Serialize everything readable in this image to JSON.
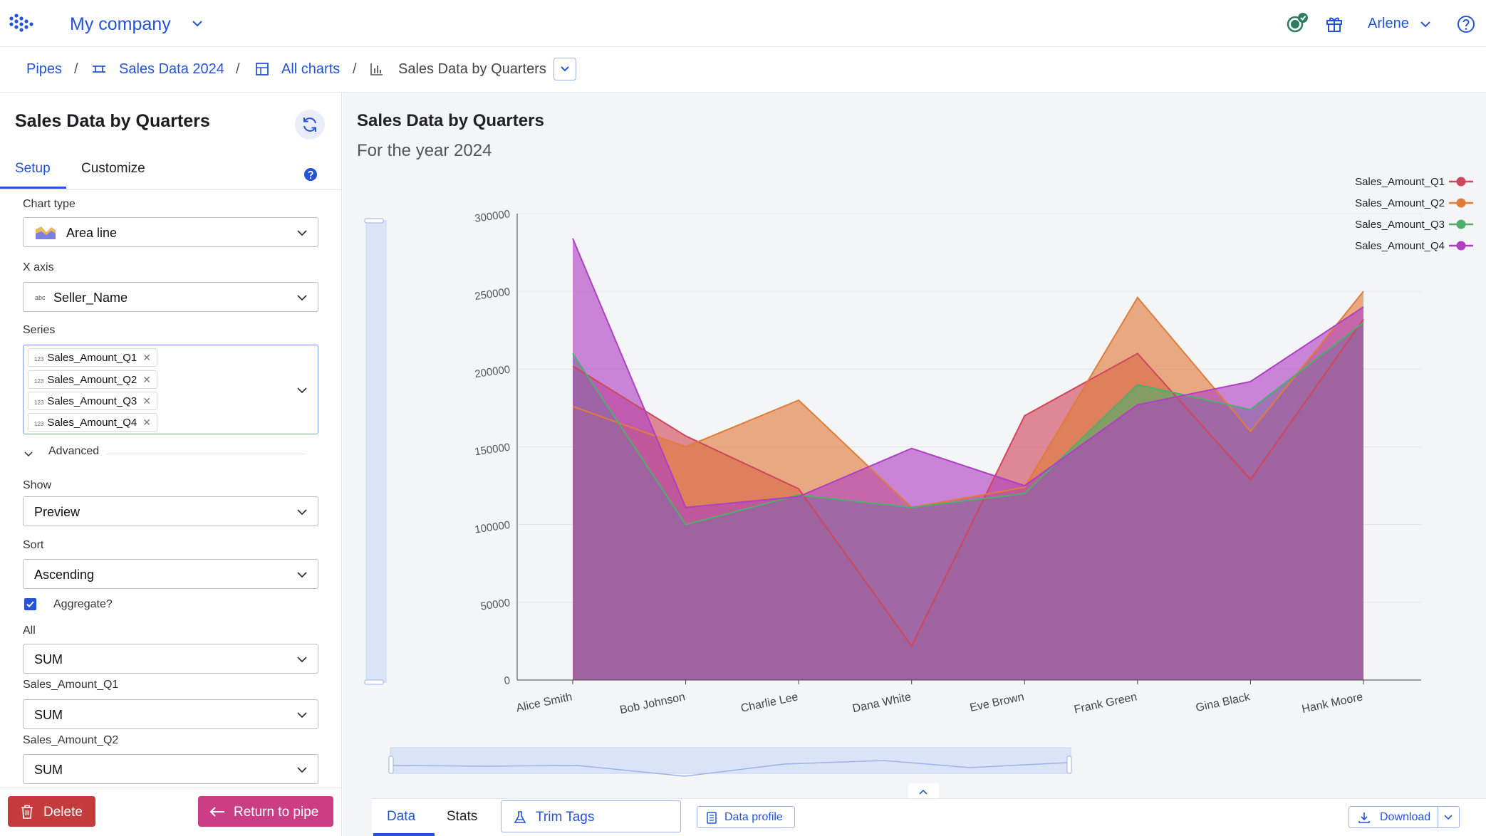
{
  "topbar": {
    "company": "My company",
    "user": "Arlene"
  },
  "breadcrumb": {
    "pipes": "Pipes",
    "dataset": "Sales Data 2024",
    "all_charts": "All charts",
    "current": "Sales Data by Quarters",
    "separator": "/"
  },
  "panel": {
    "title": "Sales Data by Quarters",
    "tabs": {
      "setup": "Setup",
      "customize": "Customize"
    },
    "chart_type_label": "Chart type",
    "chart_type_value": "Area line",
    "x_axis_label": "X axis",
    "x_axis_type": "abc",
    "x_axis_value": "Seller_Name",
    "series_label": "Series",
    "series_type": "123",
    "series": [
      "Sales_Amount_Q1",
      "Sales_Amount_Q2",
      "Sales_Amount_Q3",
      "Sales_Amount_Q4"
    ],
    "advanced_label": "Advanced",
    "show_label": "Show",
    "show_value": "Preview",
    "sort_label": "Sort",
    "sort_value": "Ascending",
    "aggregate_label": "Aggregate?",
    "aggregate_checked": true,
    "all_label": "All",
    "all_value": "SUM",
    "q1_label": "Sales_Amount_Q1",
    "q1_value": "SUM",
    "q2_label": "Sales_Amount_Q2",
    "q2_value": "SUM",
    "delete_label": "Delete",
    "return_label": "Return to pipe"
  },
  "main": {
    "chart_title": "Sales Data by Quarters",
    "chart_subtitle": "For the year 2024"
  },
  "bottom": {
    "data_tab": "Data",
    "stats_tab": "Stats",
    "trim_tags": "Trim Tags",
    "data_profile": "Data profile",
    "download": "Download"
  },
  "colors": {
    "accent": "#2453d6",
    "delete": "#c53a3a",
    "return": "#cb3d84"
  },
  "chart_data": {
    "type": "area",
    "title": "Sales Data by Quarters",
    "subtitle": "For the year 2024",
    "categories": [
      "Alice Smith",
      "Bob Johnson",
      "Charlie Lee",
      "Dana White",
      "Eve Brown",
      "Frank Green",
      "Gina Black",
      "Hank Moore"
    ],
    "ylim": [
      0,
      300000
    ],
    "yticks": [
      0,
      50000,
      100000,
      150000,
      200000,
      250000,
      300000
    ],
    "legend_position": "top-right",
    "grid": true,
    "series": [
      {
        "name": "Sales_Amount_Q1",
        "color": "#d0465a",
        "values": [
          202000,
          157000,
          123000,
          22000,
          170000,
          210000,
          129000,
          232000
        ]
      },
      {
        "name": "Sales_Amount_Q2",
        "color": "#e07b3a",
        "values": [
          176000,
          150000,
          180000,
          111000,
          124000,
          246000,
          160000,
          250000
        ]
      },
      {
        "name": "Sales_Amount_Q3",
        "color": "#4caf6a",
        "values": [
          210000,
          100000,
          119000,
          111000,
          120000,
          190000,
          174000,
          230000
        ]
      },
      {
        "name": "Sales_Amount_Q4",
        "color": "#b03fc4",
        "values": [
          284000,
          111000,
          118000,
          149000,
          125000,
          177000,
          192000,
          240000
        ]
      }
    ]
  }
}
